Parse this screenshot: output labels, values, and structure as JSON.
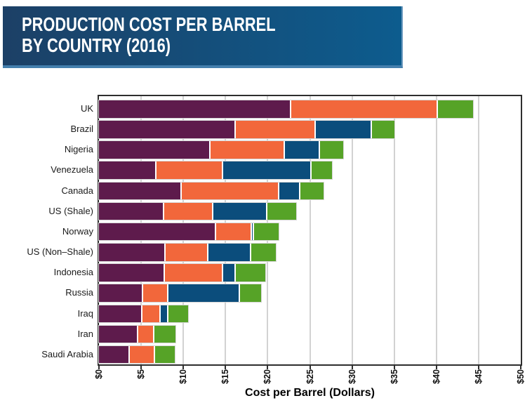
{
  "header": {
    "title_line1": "PRODUCTION COST PER BARREL",
    "title_line2": "BY COUNTRY (2016)",
    "colors": {
      "background_left": "#1c4066",
      "background_right": "#0d5c8e",
      "bottom_edge": "#447fad",
      "text": "#ffffff"
    }
  },
  "chart_data": {
    "type": "bar",
    "orientation": "horizontal",
    "stacked": true,
    "categories": [
      "UK",
      "Brazil",
      "Nigeria",
      "Venezuela",
      "Canada",
      "US (Shale)",
      "Norway",
      "US (Non–Shale)",
      "Indonesia",
      "Russia",
      "Iraq",
      "Iran",
      "Saudi Arabia"
    ],
    "series": [
      {
        "name": "dark-purple-segment",
        "color": "#5e1b4c",
        "values": [
          22.67,
          16.09,
          13.1,
          6.66,
          9.69,
          7.56,
          13.76,
          7.7,
          7.65,
          5.1,
          5.03,
          4.48,
          3.5
        ]
      },
      {
        "name": "orange-segment",
        "color": "#f2673b",
        "values": [
          17.36,
          9.45,
          8.81,
          7.94,
          11.56,
          5.85,
          4.24,
          5.15,
          6.87,
          2.98,
          2.16,
          1.94,
          3.0
        ]
      },
      {
        "name": "blue-segment",
        "color": "#0b4d7c",
        "values": [
          0,
          6.66,
          4.11,
          10.48,
          2.48,
          6.42,
          0.19,
          5.03,
          1.55,
          8.44,
          0.91,
          0,
          0
        ]
      },
      {
        "name": "green-segment",
        "color": "#56a327",
        "values": [
          4.3,
          2.8,
          2.97,
          2.54,
          2.92,
          3.52,
          3.12,
          3.11,
          3.63,
          2.69,
          2.47,
          2.67,
          2.49
        ]
      }
    ],
    "totals": [
      44.33,
      35.0,
      28.99,
      27.62,
      26.65,
      23.35,
      21.31,
      20.99,
      19.7,
      19.21,
      10.57,
      9.09,
      8.99
    ],
    "xlabel": "Cost per Barrel (Dollars)",
    "xticks": [
      "$0",
      "$5",
      "$10",
      "$15",
      "$20",
      "$25",
      "$30",
      "$35",
      "$40",
      "$45",
      "$50"
    ],
    "xlim": [
      0,
      50
    ],
    "xtick_step": 5,
    "grid": "vertical-gridlines",
    "legend": "none",
    "axis_color": "#2e2e2e",
    "gridline_color": "#d2d2d2"
  }
}
